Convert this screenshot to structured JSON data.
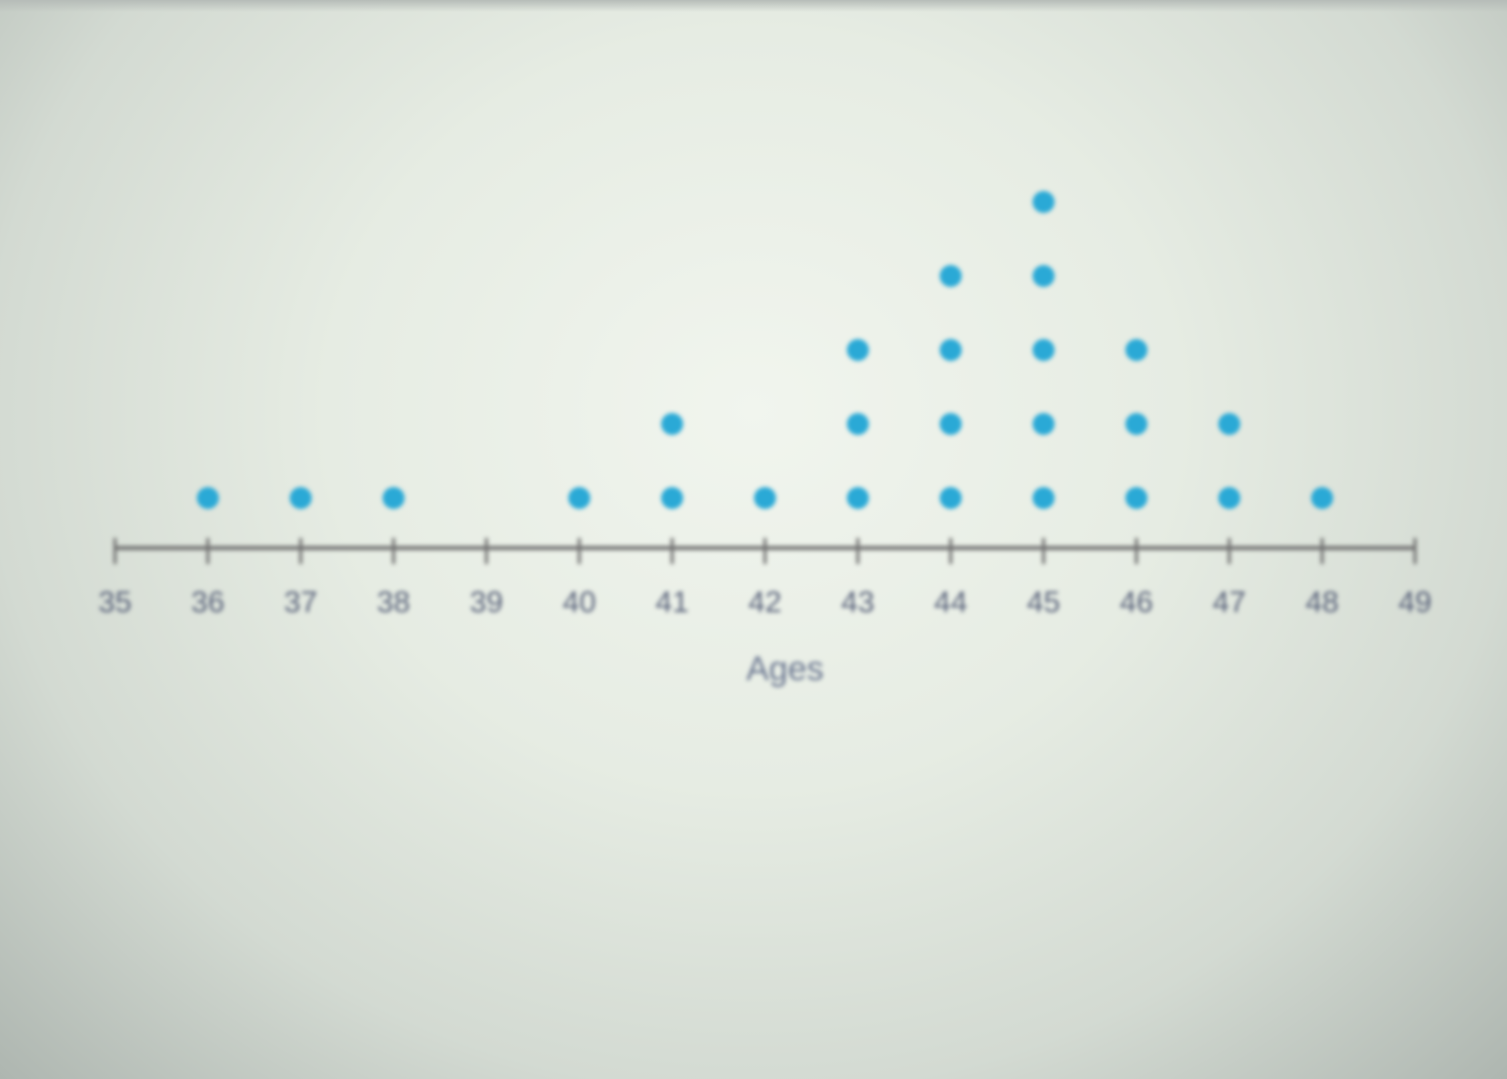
{
  "chart_data": {
    "type": "scatter",
    "subtype": "dot-plot",
    "xlabel": "Ages",
    "x_ticks": [
      35,
      36,
      37,
      38,
      39,
      40,
      41,
      42,
      43,
      44,
      45,
      46,
      47,
      48,
      49
    ],
    "xlim": [
      35,
      49
    ],
    "grid": false,
    "dot_color": "#2aa9d6",
    "axis_color": "#707070",
    "counts": [
      {
        "x": 36,
        "count": 1
      },
      {
        "x": 37,
        "count": 1
      },
      {
        "x": 38,
        "count": 1
      },
      {
        "x": 40,
        "count": 1
      },
      {
        "x": 41,
        "count": 2
      },
      {
        "x": 42,
        "count": 1
      },
      {
        "x": 43,
        "count": 3
      },
      {
        "x": 44,
        "count": 4
      },
      {
        "x": 45,
        "count": 5
      },
      {
        "x": 46,
        "count": 3
      },
      {
        "x": 47,
        "count": 2
      },
      {
        "x": 48,
        "count": 1
      }
    ]
  }
}
